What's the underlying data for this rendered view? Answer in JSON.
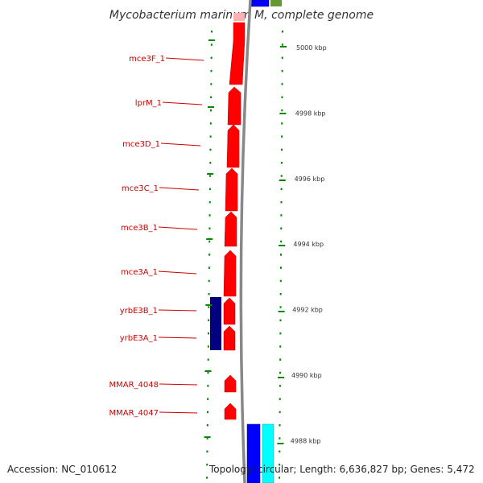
{
  "title": "Mycobacterium marinum M, complete genome",
  "footer": {
    "accession": "Accession: NC_010612",
    "topology": "Topology: circular; Length: 6,636,827 bp; Genes: 5,472"
  },
  "colors": {
    "gene_red": "#ff0000",
    "gene_navy": "#000080",
    "gene_blue": "#0000ff",
    "gene_cyan": "#00ffff",
    "gene_green": "#669933",
    "gene_pink": "#ffb0b0",
    "tick_green": "#008800",
    "label_red": "#cc0000",
    "backbone": "#888888"
  },
  "scale_ticks": [
    {
      "kbp": 5000,
      "label": "5000 kbp"
    },
    {
      "kbp": 4998,
      "label": "4998 kbp"
    },
    {
      "kbp": 4996,
      "label": "4996 kbp"
    },
    {
      "kbp": 4994,
      "label": "4994 kbp"
    },
    {
      "kbp": 4992,
      "label": "4992 kbp"
    },
    {
      "kbp": 4990,
      "label": "4990 kbp"
    },
    {
      "kbp": 4988,
      "label": "4988 kbp"
    }
  ],
  "gene_labels": [
    "mce3F_1",
    "lprM_1",
    "mce3D_1",
    "mce3C_1",
    "mce3B_1",
    "mce3A_1",
    "yrbE3B_1",
    "yrbE3A_1",
    "MMAR_4048",
    "MMAR_4047"
  ]
}
